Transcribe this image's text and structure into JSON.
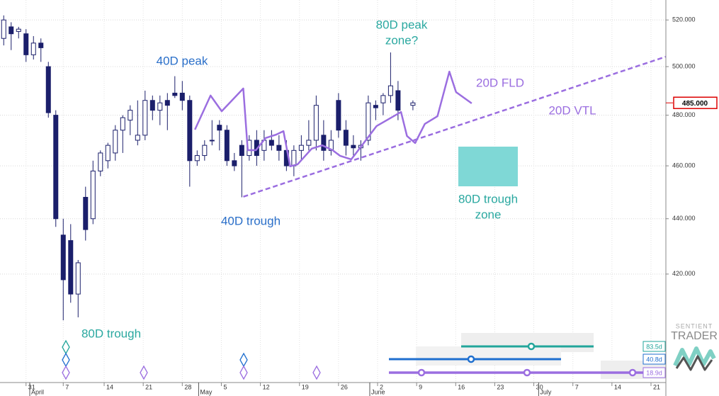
{
  "chart_data": {
    "type": "candlestick",
    "log": true,
    "grid": true,
    "ylim": [
      383.4,
      528.8
    ],
    "yticks": [
      {
        "value": 420,
        "label": "420.000"
      },
      {
        "value": 440,
        "label": "440.000"
      },
      {
        "value": 460,
        "label": "460.000"
      },
      {
        "value": 480,
        "label": "480.000"
      },
      {
        "value": 500,
        "label": "500.000"
      },
      {
        "value": 520,
        "label": "520.000"
      }
    ],
    "xlim": [
      -0.5,
      89
    ],
    "xticks": [
      {
        "value": 3,
        "label": "31"
      },
      {
        "value": 8,
        "label": "7"
      },
      {
        "value": 13.5,
        "label": "14"
      },
      {
        "value": 18.75,
        "label": "21"
      },
      {
        "value": 24,
        "label": "28"
      },
      {
        "value": 29.25,
        "label": "5"
      },
      {
        "value": 34.5,
        "label": "12"
      },
      {
        "value": 39.75,
        "label": "19"
      },
      {
        "value": 45,
        "label": "26"
      },
      {
        "value": 50.25,
        "label": "2"
      },
      {
        "value": 55.5,
        "label": "9"
      },
      {
        "value": 60.75,
        "label": "16"
      },
      {
        "value": 66,
        "label": "23"
      },
      {
        "value": 71.25,
        "label": "30"
      },
      {
        "value": 76.5,
        "label": "7"
      },
      {
        "value": 81.75,
        "label": "14"
      },
      {
        "value": 87,
        "label": "21"
      }
    ],
    "months": [
      {
        "value": 3.5,
        "label": "April"
      },
      {
        "value": 26.2,
        "label": "May"
      },
      {
        "value": 49.2,
        "label": "June"
      },
      {
        "value": 71.9,
        "label": "July"
      }
    ],
    "up_color": "#ffffff",
    "down_color": "#1b1f6b",
    "candles": {
      "x": [
        0,
        1,
        2,
        3,
        4,
        5,
        6,
        7,
        8,
        9,
        10,
        11,
        12,
        13,
        14,
        15,
        16,
        17,
        18,
        19,
        20,
        21,
        22,
        23,
        24,
        25,
        26,
        27,
        28,
        29,
        30,
        31,
        32,
        33,
        34,
        35,
        36,
        37,
        38,
        39,
        40,
        41,
        42,
        43,
        44,
        45,
        46,
        47,
        48,
        49,
        50,
        51,
        52,
        53,
        55
      ],
      "open": [
        512,
        517,
        515,
        514,
        505,
        510,
        500,
        480,
        434,
        432,
        413,
        448,
        440,
        458,
        462,
        465,
        474,
        478,
        470,
        472,
        486,
        482,
        486,
        489,
        489,
        486,
        462,
        464,
        470,
        476,
        474,
        462,
        468,
        464,
        470,
        466,
        470,
        468,
        466,
        460,
        466,
        468,
        470,
        472,
        466,
        486,
        474,
        468,
        467,
        470,
        484,
        485,
        488,
        490,
        484
      ],
      "high": [
        522,
        519,
        517,
        516,
        513,
        512,
        502,
        482,
        440,
        438,
        425,
        452,
        462,
        466,
        469,
        476,
        480,
        484,
        486,
        490,
        488,
        488,
        489,
        496,
        494,
        488,
        466,
        470,
        478,
        478,
        476,
        465,
        470,
        472,
        474,
        474,
        474,
        472,
        470,
        468,
        472,
        478,
        488,
        478,
        474,
        489,
        478,
        472,
        470,
        488,
        486,
        489,
        506,
        494,
        486
      ],
      "low": [
        509,
        507,
        512,
        502,
        503,
        502,
        479,
        437,
        404,
        410,
        405,
        432,
        438,
        456,
        459,
        462,
        465,
        472,
        468,
        470,
        478,
        476,
        474,
        487,
        482,
        452,
        460,
        462,
        468,
        466,
        460,
        458,
        448,
        462,
        460,
        462,
        466,
        462,
        458,
        456,
        462,
        466,
        466,
        462,
        464,
        471,
        464,
        464,
        462,
        468,
        478,
        480,
        485,
        478,
        482
      ],
      "close": [
        520,
        514,
        516,
        505,
        510,
        508,
        481,
        440,
        418,
        413,
        424,
        436,
        458,
        465,
        468,
        474,
        479,
        482,
        472,
        486,
        482,
        485,
        484,
        488,
        486,
        462,
        464,
        468,
        470,
        474,
        462,
        460,
        464,
        470,
        464,
        470,
        468,
        466,
        460,
        466,
        468,
        470,
        484,
        466,
        470,
        474,
        468,
        467,
        468,
        485,
        483,
        488,
        492,
        482,
        485
      ]
    },
    "lines": [
      {
        "name": "20D FLD",
        "color": "#9b6ee0",
        "dashed": false,
        "x": [
          25.7,
          27.8,
          29.3,
          32.2,
          32.8,
          33.9,
          35.2,
          36.6,
          37.6,
          38.5,
          39.5,
          41.4,
          42.8,
          44.2,
          45.2,
          46.7,
          47.3,
          50.1,
          53.4,
          54.2,
          55.3,
          56.6,
          58.3,
          59.9,
          60.8,
          62.9
        ],
        "values": [
          474.2,
          488.0,
          481.6,
          490.9,
          466.1,
          466.1,
          470.9,
          472.2,
          473.6,
          459.8,
          460.6,
          466.7,
          468.0,
          466.1,
          463.9,
          462.5,
          464.7,
          475.6,
          481.3,
          471.7,
          468.9,
          476.5,
          479.6,
          497.9,
          489.4,
          484.8
        ]
      },
      {
        "name": "20D VTL",
        "color": "#9b6ee0",
        "dashed": true,
        "x": [
          32.2,
          89
        ],
        "values": [
          448.2,
          504.2
        ]
      }
    ],
    "annotations": {
      "peak_80": [
        "80D peak",
        "zone?"
      ],
      "peak_40": "40D peak",
      "trough_40": "40D trough",
      "trough_80": "80D trough",
      "trough_zone_80": [
        "80D trough",
        "zone"
      ]
    },
    "last_price": {
      "value": 485,
      "label": "485.000"
    },
    "cycles": [
      {
        "label": "83.5d",
        "color": "#22a59b"
      },
      {
        "label": "40.8d",
        "color": "#1f6fcf"
      },
      {
        "label": "18.9d",
        "color": "#9b6ee0"
      }
    ],
    "watermark": [
      "SENTIENT",
      "TRADER"
    ]
  }
}
